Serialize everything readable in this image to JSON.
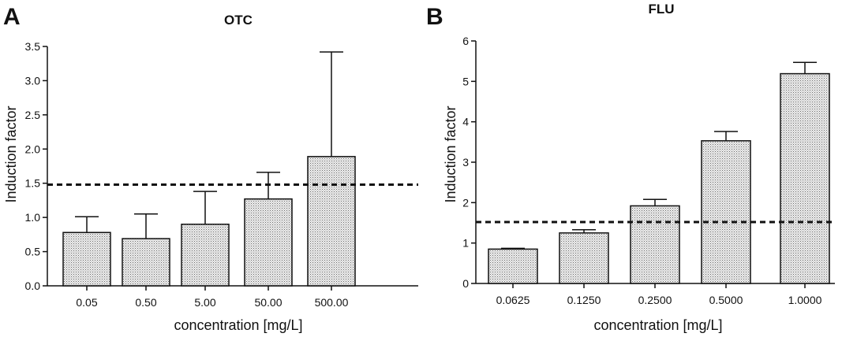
{
  "chart_data": [
    {
      "type": "bar",
      "panel_label": "A",
      "title": "OTC",
      "xlabel": "concentration [mg/L]",
      "ylabel": "Induction factor",
      "categories": [
        "0.05",
        "0.50",
        "5.00",
        "50.00",
        "500.00"
      ],
      "values": [
        0.78,
        0.69,
        0.9,
        1.27,
        1.89
      ],
      "error_upper": [
        1.01,
        1.05,
        1.38,
        1.66,
        3.42
      ],
      "threshold": 1.48,
      "ylim": [
        0,
        3.5
      ],
      "yticks": [
        "0.0",
        "0.5",
        "1.0",
        "1.5",
        "2.0",
        "2.5",
        "3.0",
        "3.5"
      ],
      "ytick_values": [
        0,
        0.5,
        1,
        1.5,
        2,
        2.5,
        3,
        3.5
      ],
      "grid": false
    },
    {
      "type": "bar",
      "panel_label": "B",
      "title": "FLU",
      "xlabel": "concentration [mg/L]",
      "ylabel": "Induction factor",
      "categories": [
        "0.0625",
        "0.1250",
        "0.2500",
        "0.5000",
        "1.0000"
      ],
      "values": [
        0.85,
        1.25,
        1.92,
        3.53,
        5.19
      ],
      "error_upper": [
        0.87,
        1.33,
        2.08,
        3.76,
        5.47
      ],
      "threshold": 1.52,
      "ylim": [
        0,
        6
      ],
      "yticks": [
        "0",
        "1",
        "2",
        "3",
        "4",
        "5",
        "6"
      ],
      "ytick_values": [
        0,
        1,
        2,
        3,
        4,
        5,
        6
      ],
      "grid": false
    }
  ]
}
